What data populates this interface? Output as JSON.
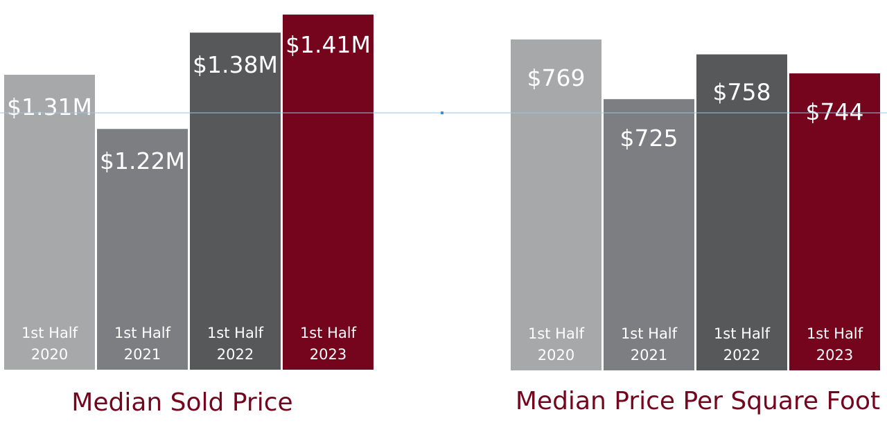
{
  "chart_data": [
    {
      "type": "bar",
      "title": "Median Sold Price",
      "categories": [
        [
          "1st Half",
          "2020"
        ],
        [
          "1st Half",
          "2021"
        ],
        [
          "1st Half",
          "2022"
        ],
        [
          "1st Half",
          "2023"
        ]
      ],
      "values": [
        1.31,
        1.22,
        1.38,
        1.41
      ],
      "value_labels": [
        "$1.31M",
        "$1.22M",
        "$1.38M",
        "$1.41M"
      ],
      "unit": "$M",
      "colors": [
        "#a7a8aa",
        "#7d7e81",
        "#57585a",
        "#74051d"
      ]
    },
    {
      "type": "bar",
      "title": "Median Price Per Square Foot",
      "categories": [
        [
          "1st Half",
          "2020"
        ],
        [
          "1st Half",
          "2021"
        ],
        [
          "1st Half",
          "2022"
        ],
        [
          "1st Half",
          "2023"
        ]
      ],
      "values": [
        769,
        725,
        758,
        744
      ],
      "value_labels": [
        "$769",
        "$725",
        "$758",
        "$744"
      ],
      "unit": "$",
      "colors": [
        "#a7a8aa",
        "#7d7e81",
        "#57585a",
        "#74051d"
      ]
    }
  ],
  "colors": {
    "title": "#74051d",
    "guide_line": "#9cc3e6",
    "guide_dot": "#3d8fd9"
  }
}
